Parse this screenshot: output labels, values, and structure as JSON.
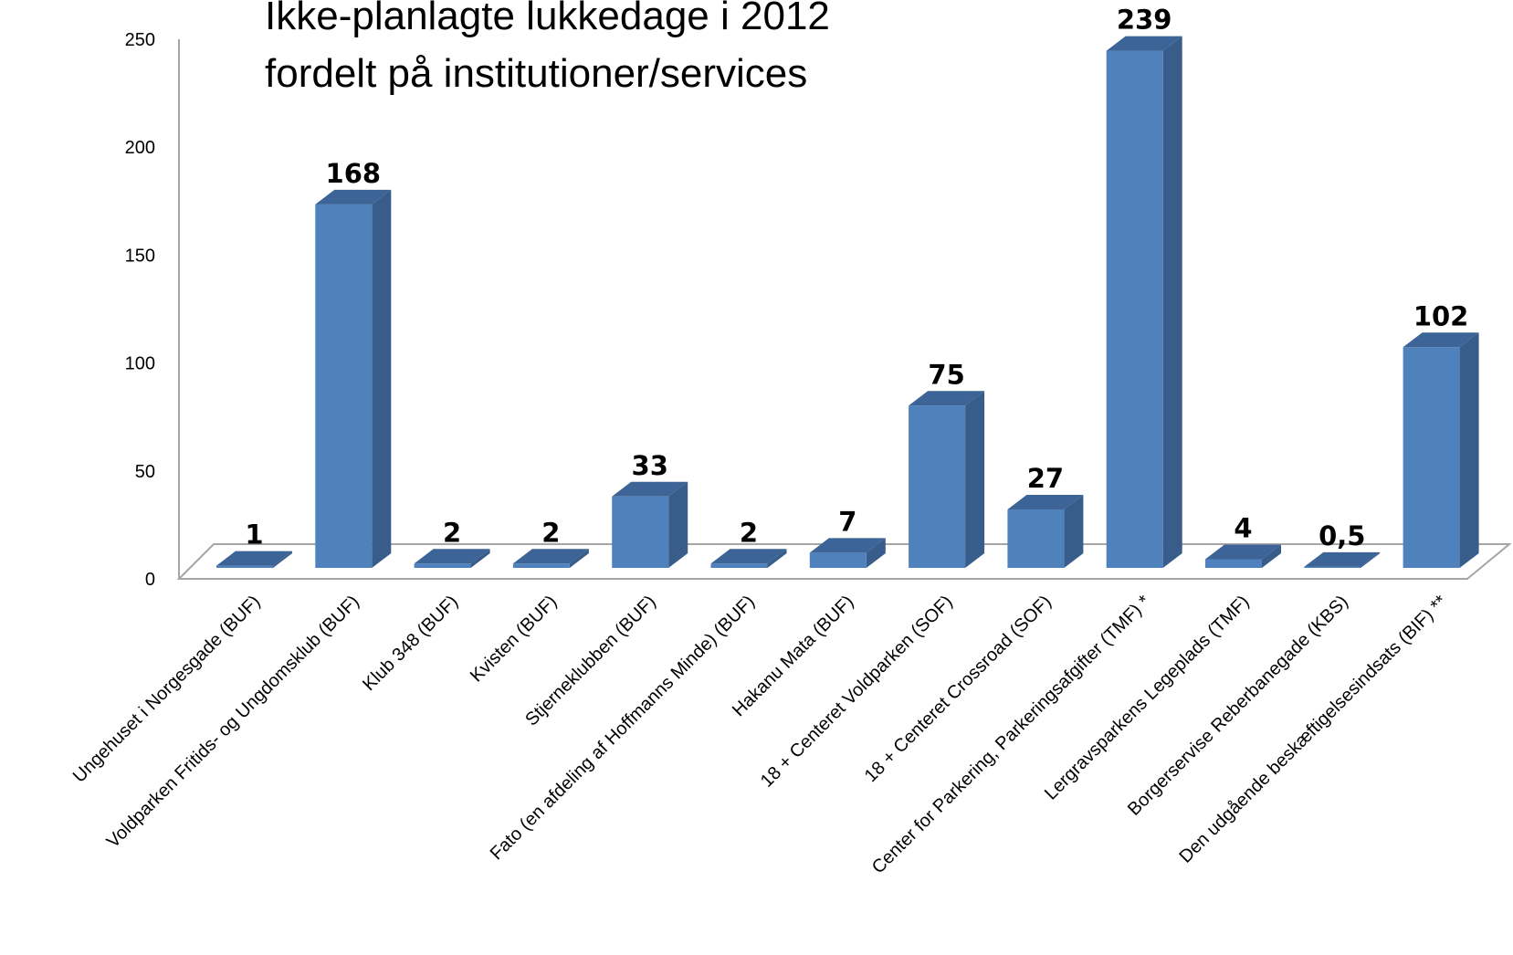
{
  "chart_data": {
    "type": "bar",
    "title_lines": [
      "Ikke-planlagte lukkedage  i 2012",
      "fordelt på institutioner/services"
    ],
    "categories": [
      "Ungehuset i Norgesgade (BUF)",
      "Voldparken Fritids- og Ungdomsklub (BUF)",
      "Klub 348 (BUF)",
      "Kvisten (BUF)",
      "Stjerneklubben (BUF)",
      "Fato (en afdeling af Hoffmanns Minde) (BUF)",
      "Hakanu Mata (BUF)",
      "18 + Centeret Voldparken (SOF)",
      "18 + Centeret Crossroad (SOF)",
      "Center for Parkering, Parkeringsafgifter  (TMF) *",
      "Lergravsparkens Legeplads (TMF)",
      "Borgerservise Reberbanegade (KBS)",
      "Den udgående beskæftigelsesindsats (BIF) **"
    ],
    "values": [
      1,
      168,
      2,
      2,
      33,
      2,
      7,
      75,
      27,
      239,
      4,
      0.5,
      102
    ],
    "data_labels": [
      "1",
      "168",
      "2",
      "2",
      "33",
      "2",
      "7",
      "75",
      "27",
      "239",
      "4",
      "0,5",
      "102"
    ],
    "yticks": [
      "0",
      "50",
      "100",
      "150",
      "200",
      "250"
    ],
    "ylim": [
      0,
      250
    ],
    "grid": false,
    "legend": "none",
    "colors": {
      "bar_front": "#4f81bd",
      "bar_side": "#385d8a",
      "bar_top": "#3c6496",
      "floor": "#ffffff",
      "axis": "#a6a6a6"
    }
  }
}
